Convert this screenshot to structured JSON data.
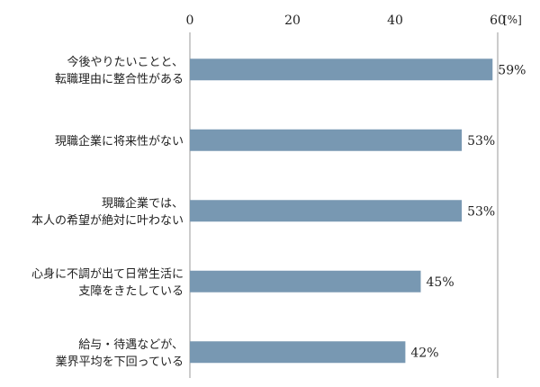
{
  "chart_data": {
    "type": "bar",
    "orientation": "horizontal",
    "unit": "[%]",
    "xlim": [
      0,
      60
    ],
    "ticks": [
      0,
      20,
      40,
      60
    ],
    "grid": false,
    "bar_color": "#7898b2",
    "categories": [
      [
        "今後やりたいことと、",
        "転職理由に整合性がある"
      ],
      [
        "現職企業に将来性がない"
      ],
      [
        "現職企業では、",
        "本人の希望が絶対に叶わない"
      ],
      [
        "心身に不調が出て日常生活に",
        "支障をきたしている"
      ],
      [
        "給与・待遇などが、",
        "業界平均を下回っている"
      ]
    ],
    "values": [
      59,
      53,
      53,
      45,
      42
    ],
    "value_labels": [
      "59%",
      "53%",
      "53%",
      "45%",
      "42%"
    ]
  }
}
